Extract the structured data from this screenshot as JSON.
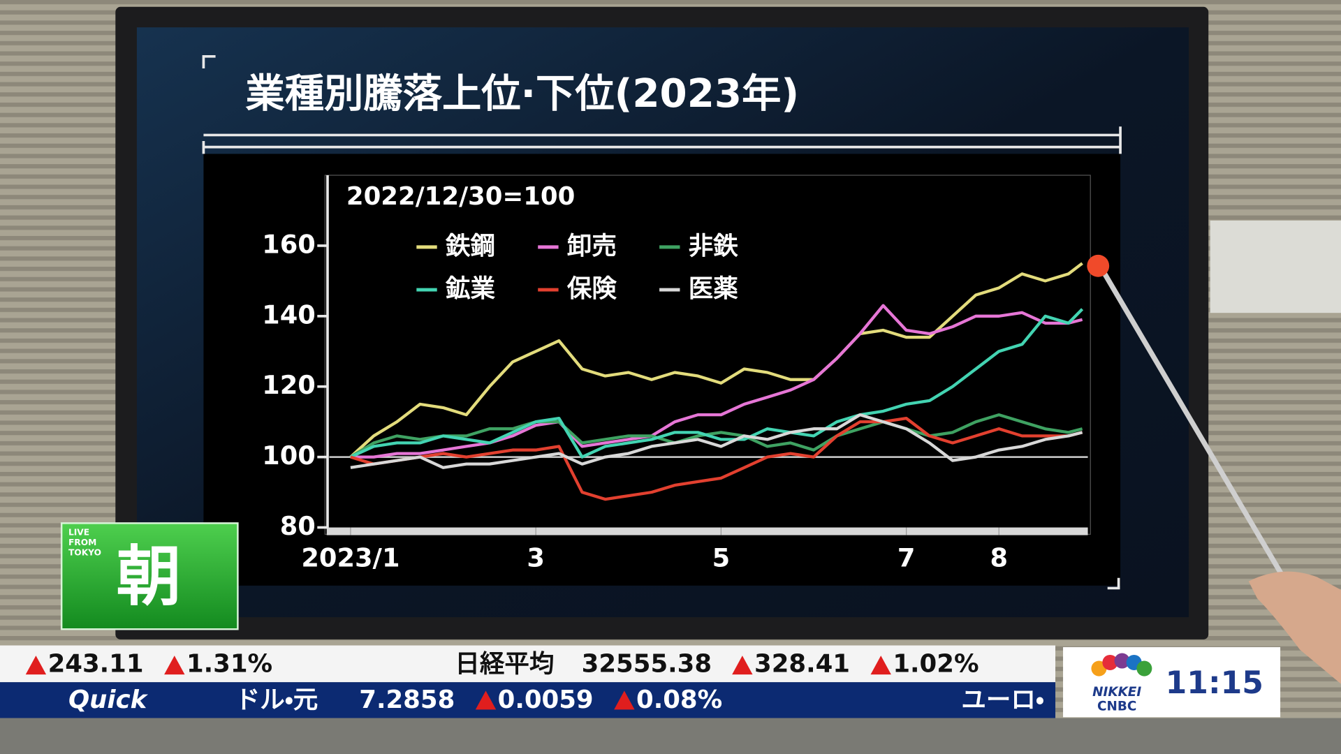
{
  "chart_data": {
    "type": "line",
    "title": "業種別騰落上位·下位(2023年)",
    "annotation": "2022/12/30=100",
    "x": [
      1,
      1.25,
      1.5,
      1.75,
      2,
      2.25,
      2.5,
      2.75,
      3,
      3.25,
      3.5,
      3.75,
      4,
      4.25,
      4.5,
      4.75,
      5,
      5.25,
      5.5,
      5.75,
      6,
      6.25,
      6.5,
      6.75,
      7,
      7.25,
      7.5,
      7.75,
      8,
      8.25,
      8.5,
      8.75,
      8.9
    ],
    "xlim": [
      0.77,
      8.96
    ],
    "xticks": [
      {
        "value": 1,
        "label": "2023/1"
      },
      3,
      5,
      7,
      8
    ],
    "ylim": [
      80,
      180
    ],
    "yticks": [
      80,
      100,
      120,
      140,
      160
    ],
    "reference_line": 100,
    "series": [
      {
        "name": "鉄鋼",
        "color": "#e3dc7c",
        "values": [
          100,
          106,
          110,
          115,
          114,
          112,
          120,
          127,
          130,
          133,
          125,
          123,
          124,
          122,
          124,
          123,
          121,
          125,
          124,
          122,
          122,
          128,
          135,
          136,
          134,
          134,
          140,
          146,
          148,
          152,
          150,
          152,
          155
        ]
      },
      {
        "name": "卸売",
        "color": "#e676d6",
        "values": [
          100,
          100,
          101,
          101,
          102,
          103,
          104,
          106,
          109,
          110,
          103,
          104,
          105,
          106,
          110,
          112,
          112,
          115,
          117,
          119,
          122,
          128,
          135,
          143,
          136,
          135,
          137,
          140,
          140,
          141,
          138,
          138,
          139
        ]
      },
      {
        "name": "非鉄",
        "color": "#3fa262",
        "values": [
          100,
          104,
          106,
          105,
          106,
          106,
          108,
          108,
          110,
          110,
          104,
          105,
          106,
          106,
          104,
          106,
          107,
          106,
          103,
          104,
          102,
          106,
          108,
          110,
          108,
          106,
          107,
          110,
          112,
          110,
          108,
          107,
          108
        ]
      },
      {
        "name": "鉱業",
        "color": "#43d4b2",
        "values": [
          100,
          103,
          104,
          104,
          106,
          105,
          104,
          107,
          110,
          111,
          100,
          103,
          104,
          105,
          107,
          107,
          105,
          105,
          108,
          107,
          106,
          110,
          112,
          113,
          115,
          116,
          120,
          125,
          130,
          132,
          140,
          138,
          142
        ]
      },
      {
        "name": "保険",
        "color": "#e2402f",
        "values": [
          100,
          98,
          99,
          100,
          101,
          100,
          101,
          102,
          102,
          103,
          90,
          88,
          89,
          90,
          92,
          93,
          94,
          97,
          100,
          101,
          100,
          106,
          110,
          110,
          111,
          106,
          104,
          106,
          108,
          106,
          106,
          106,
          107
        ]
      },
      {
        "name": "医薬",
        "color": "#d8d8d8",
        "values": [
          97,
          98,
          99,
          100,
          97,
          98,
          98,
          99,
          100,
          101,
          98,
          100,
          101,
          103,
          104,
          105,
          103,
          106,
          105,
          107,
          108,
          108,
          112,
          110,
          108,
          104,
          99,
          100,
          102,
          103,
          105,
          106,
          107
        ]
      }
    ]
  },
  "ticker": {
    "upper": {
      "change": "243.11",
      "change_pct": "1.31%",
      "index_name": "日経平均",
      "index_value": "32555.38",
      "index_change": "328.41",
      "index_change_pct": "1.02%"
    },
    "lower": {
      "source": "Quick",
      "pair": "ドル・元",
      "rate": "7.2858",
      "change": "0.0059",
      "change_pct": "0.08%",
      "next": "ユーロ・"
    }
  },
  "badge": {
    "live": "LIVE",
    "from": "FROM",
    "tokyo": "TOKYO",
    "program": "朝"
  },
  "network": {
    "name1": "NIKKEI",
    "name2": "CNBC",
    "clock": "11:15"
  }
}
